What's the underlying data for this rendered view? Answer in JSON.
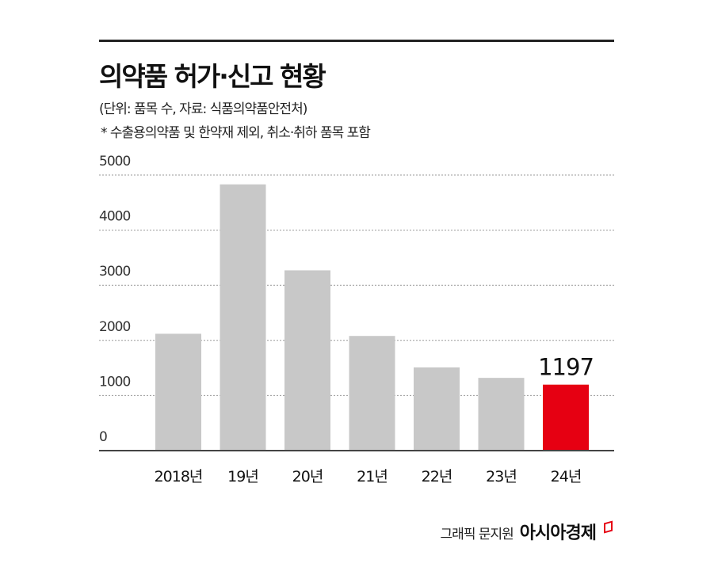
{
  "title": "의약품 허가·신고 현황",
  "subtitle": "(단위: 품목 수, 자료: 식품의약품안전처)",
  "note": "* 수출용의약품 및 한약재 제외, 취소·취하 품목 포함",
  "credit": "그래픽 문지원",
  "brand": "아시아경제",
  "colors": {
    "bar": "#c8c8c8",
    "highlight": "#e60012",
    "grid": "#999999",
    "axis": "#444444"
  },
  "chart_data": {
    "type": "bar",
    "categories": [
      "2018년",
      "19년",
      "20년",
      "21년",
      "22년",
      "23년",
      "24년"
    ],
    "values": [
      2120,
      4830,
      3270,
      2080,
      1510,
      1320,
      1197
    ],
    "highlight_index": 6,
    "highlight_label": "1197",
    "ylim": [
      0,
      5000
    ],
    "yticks": [
      0,
      1000,
      2000,
      3000,
      4000,
      5000
    ],
    "grid": true
  }
}
